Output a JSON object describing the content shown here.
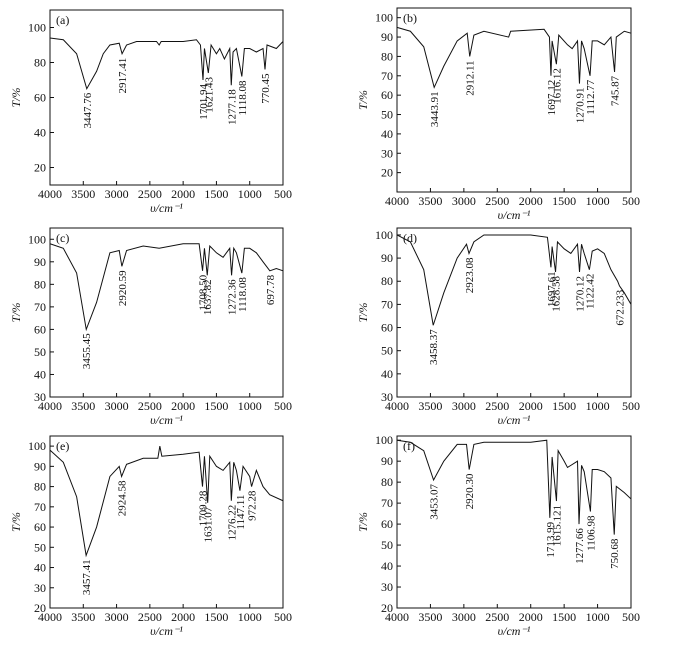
{
  "chart_data": [
    {
      "type": "line",
      "panel": "(a)",
      "xlabel": "υ/cm⁻¹",
      "ylabel": "T/%",
      "color": "#111111",
      "xlim": [
        4000,
        500
      ],
      "ylim": [
        10,
        110
      ],
      "xticks": [
        4000,
        3500,
        3000,
        2500,
        2000,
        1500,
        1000,
        500
      ],
      "yticks": [
        20,
        40,
        60,
        80,
        100
      ],
      "x": [
        4000,
        3800,
        3600,
        3447.76,
        3300,
        3200,
        3100,
        2960,
        2917.41,
        2850,
        2700,
        2400,
        2360,
        2330,
        2000,
        1800,
        1740,
        1701.94,
        1680,
        1621.43,
        1580,
        1500,
        1450,
        1380,
        1300,
        1277.18,
        1250,
        1200,
        1118.08,
        1080,
        1000,
        900,
        800,
        770.45,
        740,
        600,
        500
      ],
      "values": [
        94,
        93,
        85,
        65,
        75,
        85,
        90,
        91,
        85,
        90,
        92,
        92,
        90,
        92,
        92,
        93,
        90,
        70,
        88,
        74,
        90,
        85,
        88,
        82,
        88,
        67,
        86,
        88,
        72,
        88,
        88,
        86,
        88,
        76,
        90,
        88,
        92
      ],
      "annotations": [
        {
          "x": 3447.76,
          "label": "3447.76"
        },
        {
          "x": 2917.41,
          "label": "2917.41"
        },
        {
          "x": 1701.94,
          "label": "1701.94"
        },
        {
          "x": 1621.43,
          "label": "1621.43"
        },
        {
          "x": 1277.18,
          "label": "1277.18"
        },
        {
          "x": 1118.08,
          "label": "1118.08"
        },
        {
          "x": 770.45,
          "label": "770.45"
        }
      ]
    },
    {
      "type": "line",
      "panel": "(b)",
      "xlabel": "υ/cm⁻¹",
      "ylabel": "T/%",
      "color": "#111111",
      "xlim": [
        4000,
        500
      ],
      "ylim": [
        10,
        105
      ],
      "xticks": [
        4000,
        3500,
        3000,
        2500,
        2000,
        1500,
        1000,
        500
      ],
      "yticks": [
        20,
        30,
        40,
        50,
        60,
        70,
        80,
        90,
        100
      ],
      "x": [
        4000,
        3800,
        3600,
        3443.91,
        3300,
        3100,
        2950,
        2912.11,
        2850,
        2700,
        2330,
        2300,
        1800,
        1720,
        1697.12,
        1680,
        1616.12,
        1580,
        1450,
        1380,
        1300,
        1270.91,
        1240,
        1200,
        1112.77,
        1080,
        1000,
        900,
        800,
        745.87,
        720,
        600,
        500
      ],
      "values": [
        95,
        93,
        85,
        64,
        75,
        88,
        92,
        80,
        91,
        93,
        90,
        93,
        94,
        90,
        70,
        88,
        76,
        91,
        86,
        84,
        88,
        66,
        88,
        84,
        70,
        88,
        88,
        86,
        90,
        72,
        90,
        93,
        92
      ],
      "annotations": [
        {
          "x": 3443.91,
          "label": "3443.91"
        },
        {
          "x": 2912.11,
          "label": "2912.11"
        },
        {
          "x": 1697.12,
          "label": "1697.12"
        },
        {
          "x": 1616.12,
          "label": "1616.12"
        },
        {
          "x": 1270.91,
          "label": "1270.91"
        },
        {
          "x": 1112.77,
          "label": "1112.77"
        },
        {
          "x": 745.87,
          "label": "745.87"
        }
      ]
    },
    {
      "type": "line",
      "panel": "(c)",
      "xlabel": "υ/cm⁻¹",
      "ylabel": "T/%",
      "color": "#111111",
      "xlim": [
        4000,
        500
      ],
      "ylim": [
        30,
        105
      ],
      "xticks": [
        4000,
        3500,
        3000,
        2500,
        2000,
        1500,
        1000,
        500
      ],
      "yticks": [
        30,
        40,
        50,
        60,
        70,
        80,
        90,
        100
      ],
      "x": [
        4000,
        3800,
        3600,
        3455.45,
        3300,
        3100,
        2960,
        2920.59,
        2850,
        2600,
        2360,
        2000,
        1760,
        1708.5,
        1680,
        1637.82,
        1600,
        1500,
        1400,
        1300,
        1272.36,
        1240,
        1200,
        1118.08,
        1080,
        1000,
        900,
        800,
        697.78,
        600,
        500
      ],
      "values": [
        98,
        96,
        85,
        60,
        72,
        94,
        95,
        88,
        95,
        97,
        96,
        98,
        98,
        86,
        96,
        84,
        97,
        94,
        92,
        96,
        84,
        96,
        94,
        85,
        96,
        96,
        94,
        90,
        86,
        87,
        86
      ],
      "annotations": [
        {
          "x": 3455.45,
          "label": "3455.45"
        },
        {
          "x": 2920.59,
          "label": "2920.59"
        },
        {
          "x": 1708.5,
          "label": "1708.50"
        },
        {
          "x": 1637.82,
          "label": "1637.82"
        },
        {
          "x": 1272.36,
          "label": "1272.36"
        },
        {
          "x": 1118.08,
          "label": "1118.08"
        },
        {
          "x": 697.78,
          "label": "697.78"
        }
      ]
    },
    {
      "type": "line",
      "panel": "(d)",
      "xlabel": "υ/cm⁻¹",
      "ylabel": "T/%",
      "color": "#111111",
      "xlim": [
        4000,
        500
      ],
      "ylim": [
        30,
        103
      ],
      "xticks": [
        4000,
        3500,
        3000,
        2500,
        2000,
        1500,
        1000,
        500
      ],
      "yticks": [
        30,
        40,
        50,
        60,
        70,
        80,
        90,
        100
      ],
      "x": [
        4000,
        3800,
        3600,
        3458.37,
        3300,
        3100,
        2960,
        2923.08,
        2850,
        2700,
        2000,
        1750,
        1697.61,
        1680,
        1628.58,
        1600,
        1500,
        1400,
        1300,
        1270.12,
        1240,
        1200,
        1122.42,
        1080,
        1000,
        900,
        800,
        700,
        672.233,
        600,
        500
      ],
      "values": [
        100,
        97,
        85,
        61,
        75,
        90,
        96,
        92,
        97,
        100,
        100,
        99,
        86,
        95,
        84,
        97,
        94,
        92,
        96,
        84,
        96,
        92,
        85,
        93,
        94,
        92,
        85,
        80,
        78,
        75,
        70
      ],
      "annotations": [
        {
          "x": 3458.37,
          "label": "3458.37"
        },
        {
          "x": 2923.08,
          "label": "2923.08"
        },
        {
          "x": 1697.61,
          "label": "1697.61"
        },
        {
          "x": 1628.58,
          "label": "1628.58"
        },
        {
          "x": 1270.12,
          "label": "1270.12"
        },
        {
          "x": 1122.42,
          "label": "1122.42"
        },
        {
          "x": 672.233,
          "label": "672.233"
        }
      ]
    },
    {
      "type": "line",
      "panel": "(e)",
      "xlabel": "υ/cm⁻¹",
      "ylabel": "T/%",
      "color": "#111111",
      "xlim": [
        4000,
        500
      ],
      "ylim": [
        20,
        105
      ],
      "xticks": [
        4000,
        3500,
        3000,
        2500,
        2000,
        1500,
        1000,
        500
      ],
      "yticks": [
        20,
        30,
        40,
        50,
        60,
        70,
        80,
        90,
        100
      ],
      "x": [
        4000,
        3800,
        3600,
        3457.41,
        3300,
        3100,
        2960,
        2924.58,
        2850,
        2600,
        2380,
        2350,
        2320,
        2000,
        1760,
        1709.28,
        1680,
        1631.07,
        1600,
        1500,
        1400,
        1300,
        1276.22,
        1240,
        1200,
        1147.11,
        1100,
        1000,
        972.28,
        900,
        800,
        700,
        500
      ],
      "values": [
        98,
        92,
        75,
        46,
        60,
        85,
        90,
        85,
        91,
        94,
        94,
        100,
        95,
        96,
        97,
        80,
        95,
        72,
        95,
        90,
        88,
        92,
        73,
        92,
        88,
        78,
        90,
        85,
        80,
        88,
        80,
        76,
        73
      ],
      "annotations": [
        {
          "x": 3457.41,
          "label": "3457.41"
        },
        {
          "x": 2924.58,
          "label": "2924.58"
        },
        {
          "x": 1709.28,
          "label": "1709.28"
        },
        {
          "x": 1631.07,
          "label": "1631.07"
        },
        {
          "x": 1276.22,
          "label": "1276.22"
        },
        {
          "x": 1147.11,
          "label": "1147.11"
        },
        {
          "x": 972.28,
          "label": "972.28"
        }
      ]
    },
    {
      "type": "line",
      "panel": "(f)",
      "xlabel": "υ/cm⁻¹",
      "ylabel": "T/%",
      "color": "#111111",
      "xlim": [
        4000,
        500
      ],
      "ylim": [
        20,
        102
      ],
      "xticks": [
        4000,
        3500,
        3000,
        2500,
        2000,
        1500,
        1000,
        500
      ],
      "yticks": [
        20,
        30,
        40,
        50,
        60,
        70,
        80,
        90,
        100
      ],
      "x": [
        4000,
        3800,
        3600,
        3453.07,
        3300,
        3100,
        2960,
        2920.3,
        2850,
        2700,
        2000,
        1760,
        1713.99,
        1680,
        1615.121,
        1590,
        1500,
        1450,
        1400,
        1300,
        1277.66,
        1240,
        1200,
        1106.98,
        1080,
        1000,
        900,
        800,
        750.68,
        720,
        600,
        500
      ],
      "values": [
        100,
        99,
        95,
        81,
        90,
        98,
        98,
        86,
        98,
        99,
        99,
        100,
        63,
        92,
        71,
        95,
        90,
        87,
        88,
        90,
        60,
        88,
        85,
        66,
        86,
        86,
        85,
        82,
        55,
        78,
        75,
        72
      ],
      "annotations": [
        {
          "x": 3453.07,
          "label": "3453.07"
        },
        {
          "x": 2920.3,
          "label": "2920.30"
        },
        {
          "x": 1713.99,
          "label": "1713.99"
        },
        {
          "x": 1615.121,
          "label": "1615.121"
        },
        {
          "x": 1277.66,
          "label": "1277.66"
        },
        {
          "x": 1106.98,
          "label": "1106.98"
        },
        {
          "x": 750.68,
          "label": "750.68"
        }
      ]
    }
  ]
}
